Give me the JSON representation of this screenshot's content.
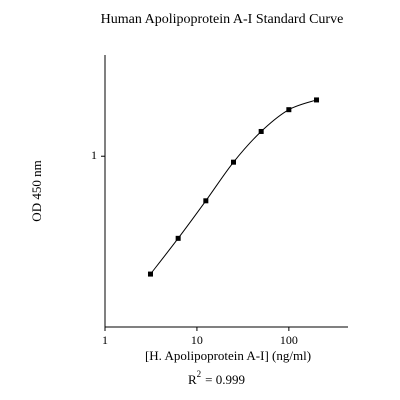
{
  "chart_data": {
    "type": "line",
    "title": "Human Apolipoprotein A-I Standard Curve",
    "x_label": "[H. Apolipoprotein A-I] (ng/ml)",
    "y_label": "OD 450 nm",
    "annotation": {
      "base": "R",
      "superscript": "2",
      "text": "= 0.999"
    },
    "x": [
      3.125,
      6.25,
      12.5,
      25,
      50,
      100,
      200
    ],
    "series": [
      {
        "color": "#000000",
        "values": [
          0.218,
          0.346,
          0.562,
          0.926,
          1.377,
          1.825,
          2.07
        ]
      }
    ],
    "xlim": [
      1,
      440
    ],
    "ylim": [
      0.11,
      3.7
    ],
    "xticks": [
      1,
      10,
      100
    ],
    "yticks": [
      1
    ],
    "xlog": true,
    "ylog": true,
    "grid": false
  }
}
